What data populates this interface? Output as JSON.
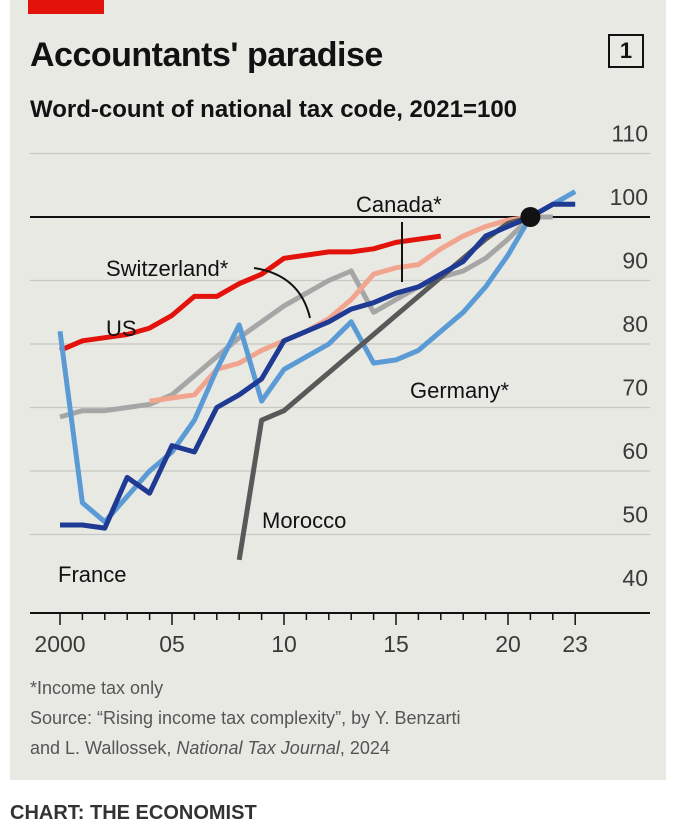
{
  "chart_data": {
    "type": "line",
    "title": "Accountants' paradise",
    "chart_number": "1",
    "subtitle": "Word-count of national tax code, 2021=100",
    "xlabel": "",
    "ylabel": "",
    "xlim": [
      2000,
      23
    ],
    "ylim": [
      40,
      110
    ],
    "y_ticks": [
      "110",
      "100",
      "90",
      "80",
      "70",
      "60",
      "50",
      "40"
    ],
    "x_tick_labels": [
      {
        "year": 2000,
        "label": "2000"
      },
      {
        "year": 2005,
        "label": "05"
      },
      {
        "year": 2010,
        "label": "10"
      },
      {
        "year": 2015,
        "label": "15"
      },
      {
        "year": 2020,
        "label": "20"
      },
      {
        "year": 2023,
        "label": "23"
      }
    ],
    "reference_point": {
      "year": 2021,
      "value": 100
    },
    "grid": true,
    "series": [
      {
        "name": "US",
        "color": "#e3120b",
        "points": [
          [
            2000,
            79
          ],
          [
            2001,
            80.5
          ],
          [
            2002,
            81
          ],
          [
            2003,
            81.5
          ],
          [
            2004,
            82.5
          ],
          [
            2005,
            84.5
          ],
          [
            2006,
            87.5
          ],
          [
            2007,
            87.5
          ],
          [
            2008,
            89.5
          ],
          [
            2009,
            91
          ],
          [
            2010,
            93.5
          ],
          [
            2011,
            94
          ],
          [
            2012,
            94.5
          ],
          [
            2013,
            94.5
          ],
          [
            2014,
            95
          ],
          [
            2015,
            96
          ],
          [
            2016,
            96.5
          ],
          [
            2017,
            97
          ]
        ]
      },
      {
        "name": "Switzerland*",
        "color": "#a6a6a6",
        "points": [
          [
            2000,
            68.5
          ],
          [
            2001,
            69.5
          ],
          [
            2002,
            69.5
          ],
          [
            2003,
            70
          ],
          [
            2004,
            70.5
          ],
          [
            2005,
            72
          ],
          [
            2006,
            75
          ],
          [
            2007,
            78
          ],
          [
            2008,
            81
          ],
          [
            2009,
            83.5
          ],
          [
            2010,
            86
          ],
          [
            2011,
            88
          ],
          [
            2012,
            90
          ],
          [
            2013,
            91.5
          ],
          [
            2014,
            85
          ],
          [
            2015,
            87
          ],
          [
            2016,
            89
          ],
          [
            2017,
            90.5
          ],
          [
            2018,
            91.5
          ],
          [
            2019,
            93.5
          ],
          [
            2020,
            96.5
          ],
          [
            2021,
            100
          ],
          [
            2022,
            100
          ]
        ]
      },
      {
        "name": "Canada*",
        "color": "#f2a58e",
        "points": [
          [
            2004,
            71
          ],
          [
            2005,
            71.5
          ],
          [
            2006,
            72
          ],
          [
            2007,
            76
          ],
          [
            2008,
            77
          ],
          [
            2009,
            79
          ],
          [
            2010,
            80.5
          ],
          [
            2011,
            82
          ],
          [
            2012,
            84
          ],
          [
            2013,
            87
          ],
          [
            2014,
            91
          ],
          [
            2015,
            92
          ],
          [
            2016,
            92.5
          ],
          [
            2017,
            95
          ],
          [
            2018,
            97
          ],
          [
            2019,
            98.5
          ],
          [
            2020,
            99.5
          ],
          [
            2021,
            100
          ]
        ]
      },
      {
        "name": "Germany*",
        "color": "#5b9bd5",
        "points": [
          [
            2000,
            82
          ],
          [
            2001,
            55
          ],
          [
            2002,
            52
          ],
          [
            2003,
            56
          ],
          [
            2004,
            60
          ],
          [
            2005,
            63
          ],
          [
            2006,
            68
          ],
          [
            2007,
            76
          ],
          [
            2008,
            83
          ],
          [
            2009,
            71
          ],
          [
            2010,
            76
          ],
          [
            2011,
            78
          ],
          [
            2012,
            80
          ],
          [
            2013,
            83.5
          ],
          [
            2014,
            77
          ],
          [
            2015,
            77.5
          ],
          [
            2016,
            79
          ],
          [
            2017,
            82
          ],
          [
            2018,
            85
          ],
          [
            2019,
            89
          ],
          [
            2020,
            94
          ],
          [
            2021,
            100
          ],
          [
            2022,
            102
          ],
          [
            2023,
            104
          ]
        ]
      },
      {
        "name": "Morocco",
        "color": "#595959",
        "points": [
          [
            2008,
            46
          ],
          [
            2009,
            68
          ],
          [
            2010,
            69.5
          ],
          [
            2011,
            72.5
          ],
          [
            2012,
            75.5
          ],
          [
            2013,
            78.5
          ],
          [
            2014,
            81.5
          ],
          [
            2015,
            84.5
          ],
          [
            2016,
            87.5
          ],
          [
            2017,
            90.5
          ],
          [
            2018,
            93.5
          ],
          [
            2019,
            96.5
          ],
          [
            2020,
            99
          ],
          [
            2021,
            100
          ]
        ]
      },
      {
        "name": "France",
        "color": "#1f3a93",
        "points": [
          [
            2000,
            51.5
          ],
          [
            2001,
            51.5
          ],
          [
            2002,
            51
          ],
          [
            2003,
            59
          ],
          [
            2004,
            56.5
          ],
          [
            2005,
            64
          ],
          [
            2006,
            63
          ],
          [
            2007,
            70
          ],
          [
            2008,
            72
          ],
          [
            2009,
            74.5
          ],
          [
            2010,
            80.5
          ],
          [
            2011,
            82
          ],
          [
            2012,
            83.5
          ],
          [
            2013,
            85.5
          ],
          [
            2014,
            86.5
          ],
          [
            2015,
            88
          ],
          [
            2016,
            89
          ],
          [
            2017,
            91
          ],
          [
            2018,
            93
          ],
          [
            2019,
            97
          ],
          [
            2020,
            98.5
          ],
          [
            2021,
            100
          ],
          [
            2022,
            102
          ],
          [
            2023,
            102
          ]
        ]
      }
    ]
  },
  "labels": {
    "us": "US",
    "switzerland": "Switzerland*",
    "canada": "Canada*",
    "germany": "Germany*",
    "morocco": "Morocco",
    "france": "France"
  },
  "footnote": "*Income tax only",
  "source_line1": "Source: “Rising income tax complexity”, by Y. Benzarti",
  "source_line2_prefix": "and L. Wallossek, ",
  "source_line2_journal": "National Tax Journal",
  "source_line2_suffix": ", 2024",
  "credit": "CHART: THE ECONOMIST"
}
